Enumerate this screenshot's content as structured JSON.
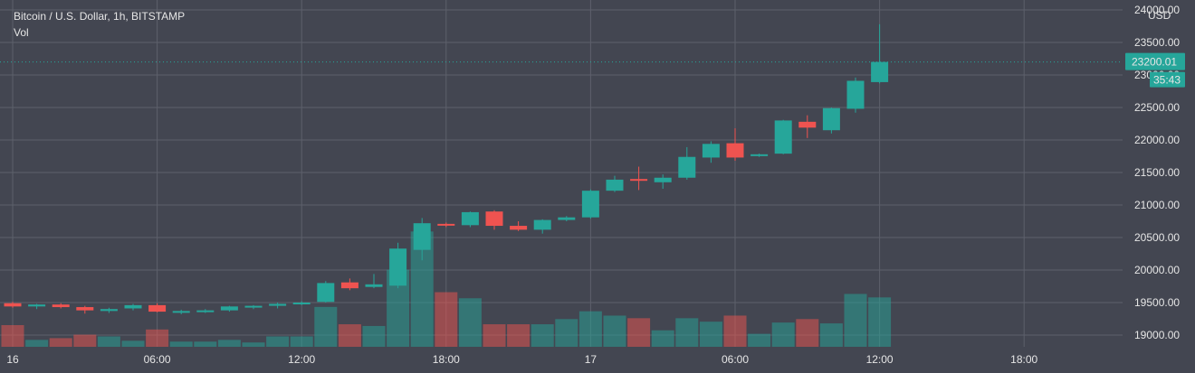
{
  "header": {
    "title": "Bitcoin / U.S. Dollar, 1h, BITSTAMP",
    "indicator": "Vol",
    "currency": "USD"
  },
  "price_badge": {
    "value": "23200.01",
    "countdown": "35:43",
    "color": "#26a69a"
  },
  "colors": {
    "background": "#434651",
    "grid": "#5d606b",
    "up": "#26a69a",
    "down": "#ef5350",
    "text": "#e6e6e6"
  },
  "chart_data": {
    "type": "candlestick",
    "y_ticks": [
      19000,
      19500,
      20000,
      20500,
      21000,
      21500,
      22000,
      22500,
      23000,
      23500,
      24000
    ],
    "y_tick_labels": [
      "19000.00",
      "19500.00",
      "20000.00",
      "20500.00",
      "21000.00",
      "21500.00",
      "22000.00",
      "22500.00",
      "23000.00",
      "23500.00",
      "24000.00"
    ],
    "ylim": [
      18850,
      24200
    ],
    "x_ticks": [
      {
        "index": 0,
        "label": "16"
      },
      {
        "index": 6,
        "label": "06:00"
      },
      {
        "index": 12,
        "label": "12:00"
      },
      {
        "index": 18,
        "label": "18:00"
      },
      {
        "index": 24,
        "label": "17"
      },
      {
        "index": 30,
        "label": "06:00"
      },
      {
        "index": 36,
        "label": "12:00"
      },
      {
        "index": 42,
        "label": "18:00"
      }
    ],
    "last_price": 23200.01,
    "volume_scale_max": 100,
    "candles": [
      {
        "open": 19490,
        "high": 19510,
        "low": 19420,
        "close": 19440,
        "volume": 25
      },
      {
        "open": 19440,
        "high": 19480,
        "low": 19400,
        "close": 19470,
        "volume": 8
      },
      {
        "open": 19470,
        "high": 19490,
        "low": 19410,
        "close": 19430,
        "volume": 10
      },
      {
        "open": 19430,
        "high": 19450,
        "low": 19330,
        "close": 19380,
        "volume": 14
      },
      {
        "open": 19370,
        "high": 19420,
        "low": 19340,
        "close": 19400,
        "volume": 12
      },
      {
        "open": 19410,
        "high": 19480,
        "low": 19380,
        "close": 19460,
        "volume": 7
      },
      {
        "open": 19460,
        "high": 19490,
        "low": 19350,
        "close": 19360,
        "volume": 20
      },
      {
        "open": 19360,
        "high": 19390,
        "low": 19320,
        "close": 19370,
        "volume": 6
      },
      {
        "open": 19370,
        "high": 19400,
        "low": 19340,
        "close": 19380,
        "volume": 6
      },
      {
        "open": 19380,
        "high": 19450,
        "low": 19360,
        "close": 19440,
        "volume": 8
      },
      {
        "open": 19430,
        "high": 19460,
        "low": 19400,
        "close": 19450,
        "volume": 5
      },
      {
        "open": 19450,
        "high": 19500,
        "low": 19410,
        "close": 19480,
        "volume": 12
      },
      {
        "open": 19480,
        "high": 19520,
        "low": 19460,
        "close": 19500,
        "volume": 12
      },
      {
        "open": 19510,
        "high": 19830,
        "low": 19500,
        "close": 19800,
        "volume": 46
      },
      {
        "open": 19810,
        "high": 19870,
        "low": 19690,
        "close": 19720,
        "volume": 26
      },
      {
        "open": 19740,
        "high": 19940,
        "low": 19720,
        "close": 19780,
        "volume": 24
      },
      {
        "open": 19760,
        "high": 20420,
        "low": 19720,
        "close": 20330,
        "volume": 89
      },
      {
        "open": 20310,
        "high": 20800,
        "low": 20150,
        "close": 20720,
        "volume": 133
      },
      {
        "open": 20710,
        "high": 20730,
        "low": 20660,
        "close": 20690,
        "volume": 63
      },
      {
        "open": 20690,
        "high": 20900,
        "low": 20660,
        "close": 20890,
        "volume": 56
      },
      {
        "open": 20900,
        "high": 20920,
        "low": 20620,
        "close": 20680,
        "volume": 26
      },
      {
        "open": 20680,
        "high": 20750,
        "low": 20600,
        "close": 20620,
        "volume": 26
      },
      {
        "open": 20620,
        "high": 20780,
        "low": 20560,
        "close": 20770,
        "volume": 26
      },
      {
        "open": 20770,
        "high": 20830,
        "low": 20750,
        "close": 20810,
        "volume": 32
      },
      {
        "open": 20810,
        "high": 21240,
        "low": 20790,
        "close": 21220,
        "volume": 41
      },
      {
        "open": 21220,
        "high": 21450,
        "low": 21200,
        "close": 21390,
        "volume": 36
      },
      {
        "open": 21400,
        "high": 21590,
        "low": 21230,
        "close": 21380,
        "volume": 33
      },
      {
        "open": 21350,
        "high": 21470,
        "low": 21250,
        "close": 21420,
        "volume": 19
      },
      {
        "open": 21420,
        "high": 21890,
        "low": 21390,
        "close": 21740,
        "volume": 33
      },
      {
        "open": 21730,
        "high": 21980,
        "low": 21650,
        "close": 21940,
        "volume": 29
      },
      {
        "open": 21950,
        "high": 22180,
        "low": 21680,
        "close": 21730,
        "volume": 36
      },
      {
        "open": 21760,
        "high": 21790,
        "low": 21740,
        "close": 21780,
        "volume": 15
      },
      {
        "open": 21790,
        "high": 22310,
        "low": 21780,
        "close": 22300,
        "volume": 28
      },
      {
        "open": 22280,
        "high": 22380,
        "low": 22030,
        "close": 22190,
        "volume": 32
      },
      {
        "open": 22150,
        "high": 22500,
        "low": 22100,
        "close": 22490,
        "volume": 27
      },
      {
        "open": 22480,
        "high": 22960,
        "low": 22420,
        "close": 22910,
        "volume": 61
      },
      {
        "open": 22890,
        "high": 23780,
        "low": 22870,
        "close": 23200,
        "volume": 57
      }
    ]
  }
}
